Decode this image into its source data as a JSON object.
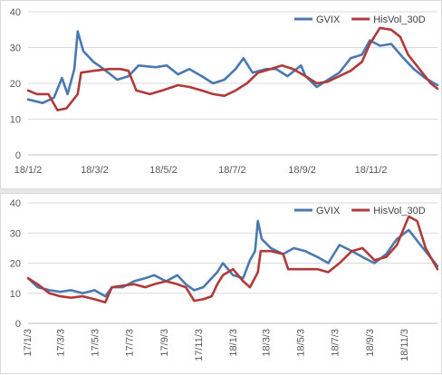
{
  "chart_data": [
    {
      "type": "line",
      "title": "",
      "xlabel": "",
      "ylabel": "",
      "ylim": [
        0,
        40
      ],
      "yticks": [
        "0",
        "10",
        "20",
        "30",
        "40"
      ],
      "x_range": [
        "2018-01-02",
        "2018-12-31"
      ],
      "xticks": [
        {
          "label": "18/1/2",
          "date": "2018-01-02"
        },
        {
          "label": "18/3/2",
          "date": "2018-03-02"
        },
        {
          "label": "18/5/2",
          "date": "2018-05-02"
        },
        {
          "label": "18/7/2",
          "date": "2018-07-02"
        },
        {
          "label": "18/9/2",
          "date": "2018-09-02"
        },
        {
          "label": "18/11/2",
          "date": "2018-11-02"
        }
      ],
      "grid": "horizontal",
      "legend": "top-right",
      "series": [
        {
          "name": "GVIX",
          "color": "#4a78b0",
          "points": [
            [
              "2018-01-02",
              15.5
            ],
            [
              "2018-01-15",
              14.5
            ],
            [
              "2018-01-25",
              16
            ],
            [
              "2018-02-01",
              21.5
            ],
            [
              "2018-02-06",
              17
            ],
            [
              "2018-02-12",
              24
            ],
            [
              "2018-02-15",
              34.5
            ],
            [
              "2018-02-20",
              29
            ],
            [
              "2018-03-01",
              26
            ],
            [
              "2018-03-10",
              24
            ],
            [
              "2018-03-22",
              21
            ],
            [
              "2018-04-01",
              22
            ],
            [
              "2018-04-10",
              25
            ],
            [
              "2018-04-25",
              24.5
            ],
            [
              "2018-05-05",
              25
            ],
            [
              "2018-05-15",
              22.5
            ],
            [
              "2018-05-25",
              24
            ],
            [
              "2018-06-05",
              22
            ],
            [
              "2018-06-15",
              20
            ],
            [
              "2018-06-25",
              21
            ],
            [
              "2018-07-05",
              24
            ],
            [
              "2018-07-12",
              27
            ],
            [
              "2018-07-20",
              23
            ],
            [
              "2018-08-01",
              24
            ],
            [
              "2018-08-10",
              24
            ],
            [
              "2018-08-20",
              22
            ],
            [
              "2018-09-01",
              25
            ],
            [
              "2018-09-05",
              22
            ],
            [
              "2018-09-15",
              19
            ],
            [
              "2018-09-25",
              21
            ],
            [
              "2018-10-05",
              23
            ],
            [
              "2018-10-15",
              27
            ],
            [
              "2018-10-25",
              28
            ],
            [
              "2018-11-01",
              32
            ],
            [
              "2018-11-10",
              30.5
            ],
            [
              "2018-11-20",
              31
            ],
            [
              "2018-12-01",
              27
            ],
            [
              "2018-12-10",
              24
            ],
            [
              "2018-12-20",
              21.5
            ],
            [
              "2018-12-31",
              19.5
            ]
          ]
        },
        {
          "name": "HisVol_30D",
          "color": "#b03a3a",
          "points": [
            [
              "2018-01-02",
              18
            ],
            [
              "2018-01-10",
              17
            ],
            [
              "2018-01-20",
              17
            ],
            [
              "2018-01-28",
              12.5
            ],
            [
              "2018-02-05",
              13
            ],
            [
              "2018-02-10",
              15
            ],
            [
              "2018-02-15",
              17
            ],
            [
              "2018-02-18",
              23
            ],
            [
              "2018-03-01",
              23.5
            ],
            [
              "2018-03-15",
              24
            ],
            [
              "2018-03-25",
              24
            ],
            [
              "2018-04-01",
              23.5
            ],
            [
              "2018-04-08",
              18
            ],
            [
              "2018-04-20",
              17
            ],
            [
              "2018-05-01",
              18
            ],
            [
              "2018-05-15",
              19.5
            ],
            [
              "2018-05-25",
              19
            ],
            [
              "2018-06-05",
              18
            ],
            [
              "2018-06-15",
              17
            ],
            [
              "2018-06-25",
              16.5
            ],
            [
              "2018-07-05",
              18
            ],
            [
              "2018-07-15",
              20
            ],
            [
              "2018-07-25",
              23
            ],
            [
              "2018-08-05",
              24
            ],
            [
              "2018-08-15",
              25
            ],
            [
              "2018-08-25",
              24
            ],
            [
              "2018-09-05",
              22
            ],
            [
              "2018-09-15",
              20
            ],
            [
              "2018-09-25",
              20.5
            ],
            [
              "2018-10-05",
              22
            ],
            [
              "2018-10-15",
              23.5
            ],
            [
              "2018-10-25",
              26
            ],
            [
              "2018-11-01",
              31
            ],
            [
              "2018-11-10",
              35.5
            ],
            [
              "2018-11-20",
              35
            ],
            [
              "2018-11-28",
              33
            ],
            [
              "2018-12-05",
              28
            ],
            [
              "2018-12-15",
              24
            ],
            [
              "2018-12-25",
              20
            ],
            [
              "2018-12-31",
              18.5
            ]
          ]
        }
      ]
    },
    {
      "type": "line",
      "title": "",
      "xlabel": "",
      "ylabel": "",
      "ylim": [
        0,
        40
      ],
      "yticks": [
        "0",
        "10",
        "20",
        "30",
        "40"
      ],
      "x_range": [
        "2017-01-03",
        "2018-12-31"
      ],
      "xticks": [
        {
          "label": "17/1/3",
          "date": "2017-01-03"
        },
        {
          "label": "17/3/3",
          "date": "2017-03-03"
        },
        {
          "label": "17/5/3",
          "date": "2017-05-03"
        },
        {
          "label": "17/7/3",
          "date": "2017-07-03"
        },
        {
          "label": "17/9/3",
          "date": "2017-09-03"
        },
        {
          "label": "17/11/3",
          "date": "2017-11-03"
        },
        {
          "label": "18/1/3",
          "date": "2018-01-03"
        },
        {
          "label": "18/3/3",
          "date": "2018-03-03"
        },
        {
          "label": "18/5/3",
          "date": "2018-05-03"
        },
        {
          "label": "18/7/3",
          "date": "2018-07-03"
        },
        {
          "label": "18/9/3",
          "date": "2018-09-03"
        },
        {
          "label": "18/11/3",
          "date": "2018-11-03"
        }
      ],
      "grid": "horizontal",
      "legend": "top-right",
      "series": [
        {
          "name": "GVIX",
          "color": "#4a78b0",
          "points": [
            [
              "2017-01-03",
              15
            ],
            [
              "2017-01-20",
              12
            ],
            [
              "2017-02-10",
              11
            ],
            [
              "2017-03-01",
              10.5
            ],
            [
              "2017-03-20",
              11
            ],
            [
              "2017-04-10",
              10
            ],
            [
              "2017-05-01",
              11
            ],
            [
              "2017-05-20",
              9
            ],
            [
              "2017-06-01",
              12
            ],
            [
              "2017-06-20",
              12
            ],
            [
              "2017-07-10",
              14
            ],
            [
              "2017-07-30",
              15
            ],
            [
              "2017-08-15",
              16
            ],
            [
              "2017-09-05",
              14
            ],
            [
              "2017-09-25",
              16
            ],
            [
              "2017-10-10",
              13
            ],
            [
              "2017-10-25",
              11
            ],
            [
              "2017-11-10",
              12
            ],
            [
              "2017-11-25",
              15
            ],
            [
              "2017-12-05",
              17
            ],
            [
              "2017-12-15",
              20
            ],
            [
              "2018-01-02",
              16
            ],
            [
              "2018-01-20",
              15
            ],
            [
              "2018-02-01",
              21
            ],
            [
              "2018-02-10",
              24
            ],
            [
              "2018-02-15",
              34
            ],
            [
              "2018-02-22",
              28
            ],
            [
              "2018-03-10",
              25
            ],
            [
              "2018-04-01",
              23
            ],
            [
              "2018-04-20",
              25
            ],
            [
              "2018-05-10",
              24
            ],
            [
              "2018-06-01",
              22
            ],
            [
              "2018-06-20",
              20
            ],
            [
              "2018-07-10",
              26
            ],
            [
              "2018-08-01",
              24
            ],
            [
              "2018-08-20",
              22
            ],
            [
              "2018-09-10",
              20
            ],
            [
              "2018-10-01",
              23
            ],
            [
              "2018-10-20",
              28
            ],
            [
              "2018-11-10",
              31
            ],
            [
              "2018-12-01",
              26
            ],
            [
              "2018-12-31",
              19
            ]
          ]
        },
        {
          "name": "HisVol_30D",
          "color": "#b03a3a",
          "points": [
            [
              "2017-01-03",
              15
            ],
            [
              "2017-01-20",
              13
            ],
            [
              "2017-02-10",
              10
            ],
            [
              "2017-03-01",
              9
            ],
            [
              "2017-03-20",
              8.5
            ],
            [
              "2017-04-10",
              9
            ],
            [
              "2017-05-01",
              8
            ],
            [
              "2017-05-20",
              7
            ],
            [
              "2017-06-01",
              12
            ],
            [
              "2017-06-20",
              12.5
            ],
            [
              "2017-07-10",
              13
            ],
            [
              "2017-07-30",
              12
            ],
            [
              "2017-08-15",
              13
            ],
            [
              "2017-09-05",
              14
            ],
            [
              "2017-09-25",
              13
            ],
            [
              "2017-10-10",
              12
            ],
            [
              "2017-10-25",
              7.5
            ],
            [
              "2017-11-10",
              8
            ],
            [
              "2017-11-25",
              9
            ],
            [
              "2017-12-05",
              13
            ],
            [
              "2017-12-15",
              16
            ],
            [
              "2018-01-02",
              18
            ],
            [
              "2018-01-20",
              14
            ],
            [
              "2018-02-01",
              12
            ],
            [
              "2018-02-15",
              17
            ],
            [
              "2018-02-20",
              24
            ],
            [
              "2018-03-10",
              24
            ],
            [
              "2018-04-01",
              23
            ],
            [
              "2018-04-10",
              18
            ],
            [
              "2018-05-01",
              18
            ],
            [
              "2018-06-01",
              18
            ],
            [
              "2018-06-20",
              17
            ],
            [
              "2018-07-10",
              20
            ],
            [
              "2018-08-01",
              24
            ],
            [
              "2018-08-20",
              25
            ],
            [
              "2018-09-10",
              21
            ],
            [
              "2018-10-01",
              22
            ],
            [
              "2018-10-20",
              26
            ],
            [
              "2018-11-10",
              35.5
            ],
            [
              "2018-11-25",
              34
            ],
            [
              "2018-12-10",
              25
            ],
            [
              "2018-12-31",
              18
            ]
          ]
        }
      ]
    }
  ]
}
